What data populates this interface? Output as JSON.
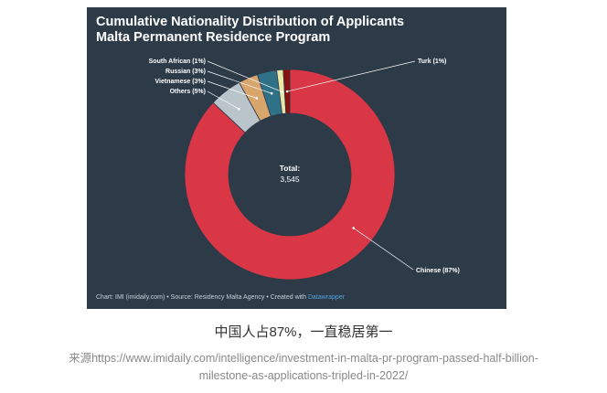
{
  "chart_data": {
    "type": "donut",
    "title": "Cumulative Nationality Distribution of Applicants",
    "subtitle": "Malta Permanent Residence Program",
    "total_label": "Total:",
    "total_value": "3,545",
    "slices": [
      {
        "label": "Chinese (87%)",
        "value": 87,
        "color": "#d93745"
      },
      {
        "label": "Others (5%)",
        "value": 5,
        "color": "#b9c4cb"
      },
      {
        "label": "Vietnamese (3%)",
        "value": 3,
        "color": "#d8a56c"
      },
      {
        "label": "Russian (3%)",
        "value": 3,
        "color": "#2f7187"
      },
      {
        "label": "South African (1%)",
        "value": 1,
        "color": "#e8e6a8"
      },
      {
        "label": "Turk (1%)",
        "value": 1,
        "color": "#8b1010"
      }
    ],
    "footer": "Chart: IMI (imidaily.com) • Source: Residency Malta Agency • Created with ",
    "footer_link": "Datawrapper"
  },
  "caption": "中国人占87%，一直稳居第一",
  "source_line_1": "来源https://www.imidaily.com/intelligence/investment-in-malta-pr-program-passed-half-billion-",
  "source_line_2": "milestone-as-applications-tripled-in-2022/"
}
